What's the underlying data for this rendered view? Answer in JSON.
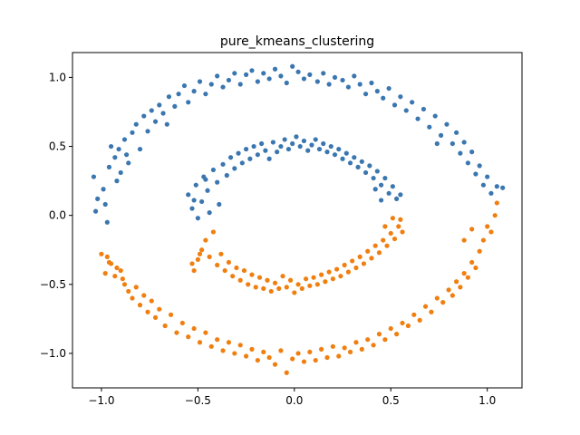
{
  "chart_data": {
    "type": "scatter",
    "title": "pure_kmeans_clustering",
    "xlabel": "",
    "ylabel": "",
    "xlim": [
      -1.15,
      1.18
    ],
    "ylim": [
      -1.25,
      1.18
    ],
    "x_ticks": [
      -1.0,
      -0.5,
      0.0,
      0.5,
      1.0
    ],
    "x_tick_labels": [
      "−1.0",
      "−0.5",
      "0.0",
      "0.5",
      "1.0"
    ],
    "y_ticks": [
      -1.0,
      -0.5,
      0.0,
      0.5,
      1.0
    ],
    "y_tick_labels": [
      "−1.0",
      "−0.5",
      "0.0",
      "0.5",
      "1.0"
    ],
    "grid": false,
    "series": [
      {
        "color": "#3a76af",
        "points": [
          [
            -1.04,
            0.28
          ],
          [
            -1.03,
            0.03
          ],
          [
            -1.02,
            0.12
          ],
          [
            -0.99,
            0.19
          ],
          [
            -0.98,
            0.08
          ],
          [
            -0.97,
            -0.05
          ],
          [
            -0.96,
            0.35
          ],
          [
            -0.95,
            0.5
          ],
          [
            -0.93,
            0.42
          ],
          [
            -0.92,
            0.25
          ],
          [
            -0.91,
            0.48
          ],
          [
            -0.9,
            0.31
          ],
          [
            -0.88,
            0.55
          ],
          [
            -0.86,
            0.38
          ],
          [
            -0.84,
            0.6
          ],
          [
            -0.82,
            0.66
          ],
          [
            -0.8,
            0.48
          ],
          [
            -0.78,
            0.72
          ],
          [
            -0.76,
            0.61
          ],
          [
            -0.74,
            0.76
          ],
          [
            -0.72,
            0.68
          ],
          [
            -0.7,
            0.8
          ],
          [
            -0.68,
            0.74
          ],
          [
            -0.65,
            0.86
          ],
          [
            -0.62,
            0.79
          ],
          [
            -0.6,
            0.88
          ],
          [
            -0.57,
            0.94
          ],
          [
            -0.55,
            0.82
          ],
          [
            -0.52,
            0.9
          ],
          [
            -0.49,
            0.97
          ],
          [
            -0.46,
            0.88
          ],
          [
            -0.43,
            0.95
          ],
          [
            -0.4,
            1.01
          ],
          [
            -0.37,
            0.93
          ],
          [
            -0.34,
            0.98
          ],
          [
            -0.31,
            1.03
          ],
          [
            -0.28,
            0.95
          ],
          [
            -0.25,
            1.02
          ],
          [
            -0.22,
            1.05
          ],
          [
            -0.19,
            0.97
          ],
          [
            -0.16,
            1.03
          ],
          [
            -0.13,
            0.99
          ],
          [
            -0.1,
            1.06
          ],
          [
            -0.07,
            1.01
          ],
          [
            -0.04,
            0.96
          ],
          [
            -0.01,
            1.08
          ],
          [
            0.02,
            1.04
          ],
          [
            0.05,
            0.99
          ],
          [
            0.08,
            1.02
          ],
          [
            0.12,
            0.97
          ],
          [
            0.15,
            1.03
          ],
          [
            0.18,
            0.95
          ],
          [
            0.21,
            1.0
          ],
          [
            0.25,
            0.98
          ],
          [
            0.28,
            0.93
          ],
          [
            0.31,
            1.01
          ],
          [
            0.34,
            0.95
          ],
          [
            0.37,
            0.88
          ],
          [
            0.4,
            0.96
          ],
          [
            0.43,
            0.9
          ],
          [
            0.46,
            0.85
          ],
          [
            0.49,
            0.92
          ],
          [
            0.52,
            0.8
          ],
          [
            0.55,
            0.86
          ],
          [
            0.58,
            0.76
          ],
          [
            0.61,
            0.82
          ],
          [
            0.64,
            0.7
          ],
          [
            0.67,
            0.77
          ],
          [
            0.7,
            0.64
          ],
          [
            0.73,
            0.72
          ],
          [
            0.76,
            0.58
          ],
          [
            0.79,
            0.66
          ],
          [
            0.82,
            0.52
          ],
          [
            0.84,
            0.6
          ],
          [
            0.86,
            0.45
          ],
          [
            0.88,
            0.53
          ],
          [
            0.9,
            0.38
          ],
          [
            0.92,
            0.46
          ],
          [
            0.94,
            0.3
          ],
          [
            0.96,
            0.36
          ],
          [
            0.98,
            0.22
          ],
          [
            1.0,
            0.28
          ],
          [
            1.02,
            0.16
          ],
          [
            1.05,
            0.21
          ],
          [
            1.08,
            0.2
          ],
          [
            0.74,
            0.52
          ],
          [
            -0.87,
            0.44
          ],
          [
            -0.66,
            0.66
          ],
          [
            -0.55,
            0.15
          ],
          [
            -0.53,
            0.05
          ],
          [
            -0.51,
            0.22
          ],
          [
            -0.5,
            -0.02
          ],
          [
            -0.48,
            0.1
          ],
          [
            -0.47,
            0.28
          ],
          [
            -0.45,
            0.18
          ],
          [
            -0.44,
            0.02
          ],
          [
            -0.42,
            0.33
          ],
          [
            -0.4,
            0.24
          ],
          [
            -0.39,
            0.08
          ],
          [
            -0.37,
            0.37
          ],
          [
            -0.35,
            0.29
          ],
          [
            -0.33,
            0.42
          ],
          [
            -0.31,
            0.34
          ],
          [
            -0.29,
            0.45
          ],
          [
            -0.27,
            0.38
          ],
          [
            -0.25,
            0.48
          ],
          [
            -0.23,
            0.41
          ],
          [
            -0.21,
            0.5
          ],
          [
            -0.19,
            0.44
          ],
          [
            -0.17,
            0.52
          ],
          [
            -0.15,
            0.47
          ],
          [
            -0.13,
            0.41
          ],
          [
            -0.11,
            0.53
          ],
          [
            -0.09,
            0.46
          ],
          [
            -0.07,
            0.5
          ],
          [
            -0.05,
            0.55
          ],
          [
            -0.03,
            0.48
          ],
          [
            -0.01,
            0.52
          ],
          [
            0.01,
            0.57
          ],
          [
            0.03,
            0.5
          ],
          [
            0.05,
            0.54
          ],
          [
            0.07,
            0.47
          ],
          [
            0.09,
            0.51
          ],
          [
            0.11,
            0.55
          ],
          [
            0.13,
            0.48
          ],
          [
            0.15,
            0.52
          ],
          [
            0.17,
            0.46
          ],
          [
            0.19,
            0.5
          ],
          [
            0.21,
            0.44
          ],
          [
            0.23,
            0.48
          ],
          [
            0.25,
            0.41
          ],
          [
            0.27,
            0.45
          ],
          [
            0.29,
            0.38
          ],
          [
            0.31,
            0.42
          ],
          [
            0.33,
            0.35
          ],
          [
            0.35,
            0.39
          ],
          [
            0.37,
            0.31
          ],
          [
            0.39,
            0.36
          ],
          [
            0.41,
            0.27
          ],
          [
            0.43,
            0.32
          ],
          [
            0.45,
            0.22
          ],
          [
            0.47,
            0.27
          ],
          [
            0.49,
            0.16
          ],
          [
            0.51,
            0.21
          ],
          [
            0.53,
            0.12
          ],
          [
            0.55,
            0.15
          ],
          [
            -0.46,
            0.26
          ],
          [
            0.45,
            0.11
          ],
          [
            0.42,
            0.19
          ],
          [
            -0.52,
            0.11
          ]
        ]
      },
      {
        "color": "#f07f10",
        "points": [
          [
            -1.0,
            -0.28
          ],
          [
            -0.98,
            -0.42
          ],
          [
            -0.97,
            -0.3
          ],
          [
            -0.95,
            -0.35
          ],
          [
            -0.93,
            -0.44
          ],
          [
            -0.92,
            -0.38
          ],
          [
            -0.9,
            -0.4
          ],
          [
            -0.88,
            -0.5
          ],
          [
            -0.86,
            -0.55
          ],
          [
            -0.84,
            -0.6
          ],
          [
            -0.82,
            -0.52
          ],
          [
            -0.8,
            -0.65
          ],
          [
            -0.78,
            -0.58
          ],
          [
            -0.76,
            -0.7
          ],
          [
            -0.74,
            -0.62
          ],
          [
            -0.72,
            -0.74
          ],
          [
            -0.7,
            -0.68
          ],
          [
            -0.67,
            -0.8
          ],
          [
            -0.64,
            -0.72
          ],
          [
            -0.61,
            -0.85
          ],
          [
            -0.58,
            -0.78
          ],
          [
            -0.55,
            -0.88
          ],
          [
            -0.52,
            -0.82
          ],
          [
            -0.49,
            -0.92
          ],
          [
            -0.46,
            -0.85
          ],
          [
            -0.43,
            -0.95
          ],
          [
            -0.4,
            -0.9
          ],
          [
            -0.37,
            -0.98
          ],
          [
            -0.34,
            -0.92
          ],
          [
            -0.31,
            -1.0
          ],
          [
            -0.28,
            -0.94
          ],
          [
            -0.25,
            -1.02
          ],
          [
            -0.22,
            -0.97
          ],
          [
            -0.19,
            -1.05
          ],
          [
            -0.16,
            -0.99
          ],
          [
            -0.13,
            -1.03
          ],
          [
            -0.1,
            -1.08
          ],
          [
            -0.07,
            -0.98
          ],
          [
            -0.04,
            -1.14
          ],
          [
            -0.01,
            -1.04
          ],
          [
            0.02,
            -1.0
          ],
          [
            0.05,
            -1.06
          ],
          [
            0.08,
            -0.99
          ],
          [
            0.11,
            -1.05
          ],
          [
            0.14,
            -0.97
          ],
          [
            0.17,
            -1.03
          ],
          [
            0.2,
            -0.95
          ],
          [
            0.23,
            -1.02
          ],
          [
            0.26,
            -0.96
          ],
          [
            0.29,
            -0.99
          ],
          [
            0.32,
            -0.92
          ],
          [
            0.35,
            -0.97
          ],
          [
            0.38,
            -0.9
          ],
          [
            0.41,
            -0.94
          ],
          [
            0.44,
            -0.86
          ],
          [
            0.47,
            -0.9
          ],
          [
            0.5,
            -0.82
          ],
          [
            0.53,
            -0.86
          ],
          [
            0.56,
            -0.78
          ],
          [
            0.59,
            -0.8
          ],
          [
            0.62,
            -0.72
          ],
          [
            0.65,
            -0.76
          ],
          [
            0.68,
            -0.66
          ],
          [
            0.71,
            -0.7
          ],
          [
            0.74,
            -0.6
          ],
          [
            0.77,
            -0.63
          ],
          [
            0.8,
            -0.54
          ],
          [
            0.82,
            -0.58
          ],
          [
            0.84,
            -0.48
          ],
          [
            0.86,
            -0.52
          ],
          [
            0.88,
            -0.42
          ],
          [
            0.9,
            -0.45
          ],
          [
            0.92,
            -0.34
          ],
          [
            0.94,
            -0.38
          ],
          [
            0.96,
            -0.26
          ],
          [
            0.98,
            -0.18
          ],
          [
            1.0,
            -0.08
          ],
          [
            1.02,
            -0.12
          ],
          [
            1.04,
            0.0
          ],
          [
            1.05,
            0.09
          ],
          [
            0.92,
            -0.1
          ],
          [
            0.88,
            -0.18
          ],
          [
            -0.96,
            -0.34
          ],
          [
            -0.89,
            -0.46
          ],
          [
            -0.52,
            -0.4
          ],
          [
            -0.5,
            -0.32
          ],
          [
            -0.48,
            -0.25
          ],
          [
            -0.46,
            -0.18
          ],
          [
            -0.44,
            -0.3
          ],
          [
            -0.42,
            -0.12
          ],
          [
            -0.4,
            -0.36
          ],
          [
            -0.38,
            -0.28
          ],
          [
            -0.36,
            -0.4
          ],
          [
            -0.34,
            -0.34
          ],
          [
            -0.32,
            -0.44
          ],
          [
            -0.3,
            -0.38
          ],
          [
            -0.28,
            -0.47
          ],
          [
            -0.26,
            -0.4
          ],
          [
            -0.24,
            -0.5
          ],
          [
            -0.22,
            -0.43
          ],
          [
            -0.2,
            -0.52
          ],
          [
            -0.18,
            -0.45
          ],
          [
            -0.16,
            -0.53
          ],
          [
            -0.14,
            -0.47
          ],
          [
            -0.12,
            -0.55
          ],
          [
            -0.1,
            -0.49
          ],
          [
            -0.08,
            -0.53
          ],
          [
            -0.06,
            -0.44
          ],
          [
            -0.04,
            -0.52
          ],
          [
            -0.02,
            -0.47
          ],
          [
            0.0,
            -0.56
          ],
          [
            0.02,
            -0.5
          ],
          [
            0.04,
            -0.53
          ],
          [
            0.06,
            -0.46
          ],
          [
            0.08,
            -0.51
          ],
          [
            0.1,
            -0.45
          ],
          [
            0.12,
            -0.5
          ],
          [
            0.14,
            -0.43
          ],
          [
            0.16,
            -0.48
          ],
          [
            0.18,
            -0.41
          ],
          [
            0.2,
            -0.46
          ],
          [
            0.22,
            -0.39
          ],
          [
            0.24,
            -0.44
          ],
          [
            0.26,
            -0.36
          ],
          [
            0.28,
            -0.41
          ],
          [
            0.3,
            -0.33
          ],
          [
            0.32,
            -0.38
          ],
          [
            0.34,
            -0.3
          ],
          [
            0.36,
            -0.35
          ],
          [
            0.38,
            -0.26
          ],
          [
            0.4,
            -0.31
          ],
          [
            0.42,
            -0.22
          ],
          [
            0.44,
            -0.27
          ],
          [
            0.46,
            -0.18
          ],
          [
            0.48,
            -0.22
          ],
          [
            0.5,
            -0.13
          ],
          [
            0.52,
            -0.17
          ],
          [
            0.54,
            -0.08
          ],
          [
            0.56,
            -0.12
          ],
          [
            0.55,
            -0.03
          ],
          [
            0.51,
            -0.02
          ],
          [
            0.47,
            -0.08
          ],
          [
            -0.53,
            -0.35
          ],
          [
            -0.49,
            -0.28
          ]
        ]
      }
    ]
  }
}
